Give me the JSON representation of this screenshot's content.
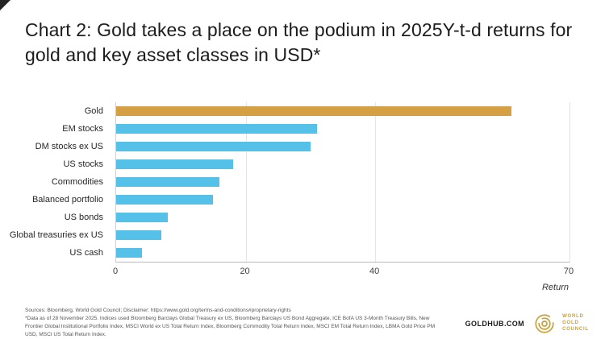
{
  "title": "Chart 2: Gold takes a place on the podium in 2025Y-t-d returns for gold and key asset classes in USD*",
  "colors": {
    "gold_bar": "#D4A043",
    "blue_bar": "#55C1E9",
    "logo_gold": "#C9A13B"
  },
  "chart_data": {
    "type": "bar",
    "orientation": "horizontal",
    "title": "Chart 2: Gold takes a place on the podium in 2025Y-t-d returns for gold and key asset classes in USD*",
    "categories": [
      "Gold",
      "EM stocks",
      "DM stocks ex US",
      "US stocks",
      "Commodities",
      "Balanced portfolio",
      "US bonds",
      "Global treasuries ex US",
      "US cash"
    ],
    "values": [
      61,
      31,
      30,
      18,
      16,
      15,
      8,
      7,
      4
    ],
    "highlight_category": "Gold",
    "xlabel": "Return",
    "xlim": [
      0,
      70
    ],
    "xticks": [
      0,
      20,
      40,
      70
    ],
    "grid": "vertical",
    "legend": "none"
  },
  "footer": {
    "sources": "Sources: Bloomberg, World Gold Council; Disclaimer: https://www.gold.org/terms-and-conditions#proprietary-rights",
    "data_note": "*Data as of 28 November 2025. Indices used Bloomberg Barclays Global Treasury ex US, Bloomberg Barclays US Bond Aggregate, ICE BofA US 3-Month Treasury Bills, New Frontier Global Institutional Portfolio Index, MSCI World ex US Total Return Index, Bloomberg Commodity Total Return Index, MSCI EM Total Return Index, LBMA Gold Price PM USD, MSCI US Total Return Index.",
    "goldhub": "GOLDHUB.COM",
    "logo_lines": [
      "WORLD",
      "GOLD",
      "COUNCIL"
    ]
  }
}
